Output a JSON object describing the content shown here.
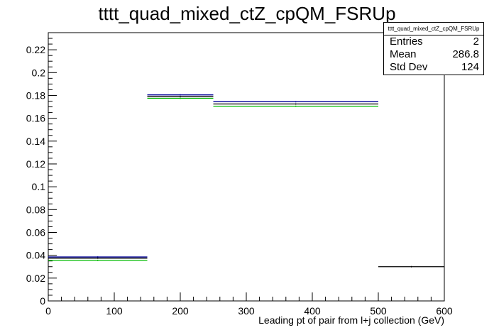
{
  "title": "tttt_quad_mixed_ctZ_cpQM_FSRUp",
  "stats": {
    "name": "tttt_quad_mixed_ctZ_cpQM_FSRUp",
    "rows": [
      {
        "label": "Entries",
        "value": "2"
      },
      {
        "label": "Mean",
        "value": "286.8"
      },
      {
        "label": "Std Dev",
        "value": "124"
      }
    ]
  },
  "chart_data": {
    "type": "bar",
    "title": "tttt_quad_mixed_ctZ_cpQM_FSRUp",
    "xlabel": "Leading pt of pair from l+j collection (GeV)",
    "ylabel": "",
    "xlim": [
      0,
      600
    ],
    "ylim": [
      0,
      0.235
    ],
    "x_ticks": [
      0,
      100,
      200,
      300,
      400,
      500,
      600
    ],
    "x_tick_labels": [
      "0",
      "100",
      "200",
      "300",
      "400",
      "500",
      "600"
    ],
    "y_ticks": [
      0,
      0.02,
      0.04,
      0.06,
      0.08,
      0.1,
      0.12,
      0.14,
      0.16,
      0.18,
      0.2,
      0.22
    ],
    "y_tick_labels": [
      "0",
      "0.02",
      "0.04",
      "0.06",
      "0.08",
      "0.1",
      "0.12",
      "0.14",
      "0.16",
      "0.18",
      "0.2",
      "0.22"
    ],
    "bin_edges": [
      0,
      150,
      250,
      500,
      600
    ],
    "series": [
      {
        "values": [
          0.0385,
          0.1805,
          0.1745,
          0.0
        ],
        "color": "#000099"
      },
      {
        "values": [
          0.0375,
          0.179,
          0.1725,
          0.0
        ],
        "color": "#000000"
      },
      {
        "values": [
          0.0355,
          0.1775,
          0.1705,
          0.0
        ],
        "color": "#00bb00"
      },
      {
        "values": [
          0.0,
          0.0,
          0.0,
          0.03
        ],
        "color": "#000000"
      }
    ],
    "grid": false,
    "legend": "none"
  }
}
